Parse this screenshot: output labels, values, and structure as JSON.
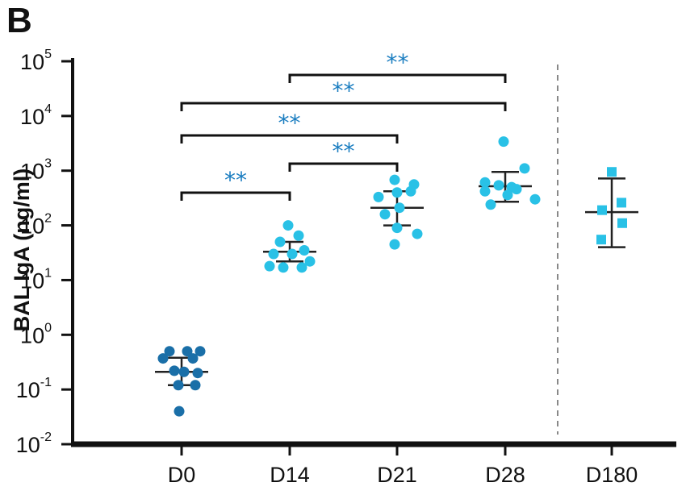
{
  "chart_data": {
    "type": "scatter",
    "panel_label": "B",
    "ylabel": "BAL IgA (ng/ml)",
    "yscale": "log",
    "ylim": [
      0.01,
      100000
    ],
    "y_ticks": [
      {
        "value": 0.01,
        "base": "10",
        "exp": "-2"
      },
      {
        "value": 0.1,
        "base": "10",
        "exp": "-1"
      },
      {
        "value": 1,
        "base": "10",
        "exp": "0"
      },
      {
        "value": 10,
        "base": "10",
        "exp": "1"
      },
      {
        "value": 100,
        "base": "10",
        "exp": "2"
      },
      {
        "value": 1000,
        "base": "10",
        "exp": "3"
      },
      {
        "value": 10000,
        "base": "10",
        "exp": "4"
      },
      {
        "value": 100000,
        "base": "10",
        "exp": "5"
      }
    ],
    "categories": [
      "D0",
      "D14",
      "D21",
      "D28",
      "D180"
    ],
    "groups": [
      {
        "category": "D0",
        "marker": "circle",
        "color": "#1a6fa8",
        "points": [
          0.5,
          0.5,
          0.5,
          0.37,
          0.37,
          0.22,
          0.21,
          0.2,
          0.12,
          0.12,
          0.04
        ],
        "mean": 0.21,
        "err_low": 0.12,
        "err_high": 0.38
      },
      {
        "category": "D14",
        "marker": "circle",
        "color": "#29c1e6",
        "points": [
          100,
          65,
          50,
          35,
          30,
          30,
          22,
          18,
          17,
          17
        ],
        "mean": 33,
        "err_low": 22,
        "err_high": 50
      },
      {
        "category": "D21",
        "marker": "circle",
        "color": "#29c1e6",
        "points": [
          680,
          560,
          420,
          400,
          330,
          210,
          160,
          90,
          70,
          45
        ],
        "mean": 210,
        "err_low": 100,
        "err_high": 420
      },
      {
        "category": "D28",
        "marker": "circle",
        "color": "#29c1e6",
        "points": [
          3400,
          1100,
          610,
          540,
          500,
          460,
          420,
          360,
          300,
          240
        ],
        "mean": 520,
        "err_low": 270,
        "err_high": 950
      },
      {
        "category": "D180",
        "marker": "square",
        "color": "#29c1e6",
        "points": [
          950,
          260,
          190,
          110,
          55
        ],
        "mean": 175,
        "err_low": 40,
        "err_high": 720
      }
    ],
    "separator_after_category": "D28",
    "significance": [
      {
        "from": "D0",
        "to": "D14",
        "label": "**",
        "level": 1
      },
      {
        "from": "D14",
        "to": "D21",
        "label": "**",
        "level": 2
      },
      {
        "from": "D0",
        "to": "D21",
        "label": "**",
        "level": 3
      },
      {
        "from": "D0",
        "to": "D28",
        "label": "**",
        "level": 4
      },
      {
        "from": "D14",
        "to": "D28",
        "label": "**",
        "level": 5
      }
    ],
    "significance_color": "#1a7dc0"
  }
}
